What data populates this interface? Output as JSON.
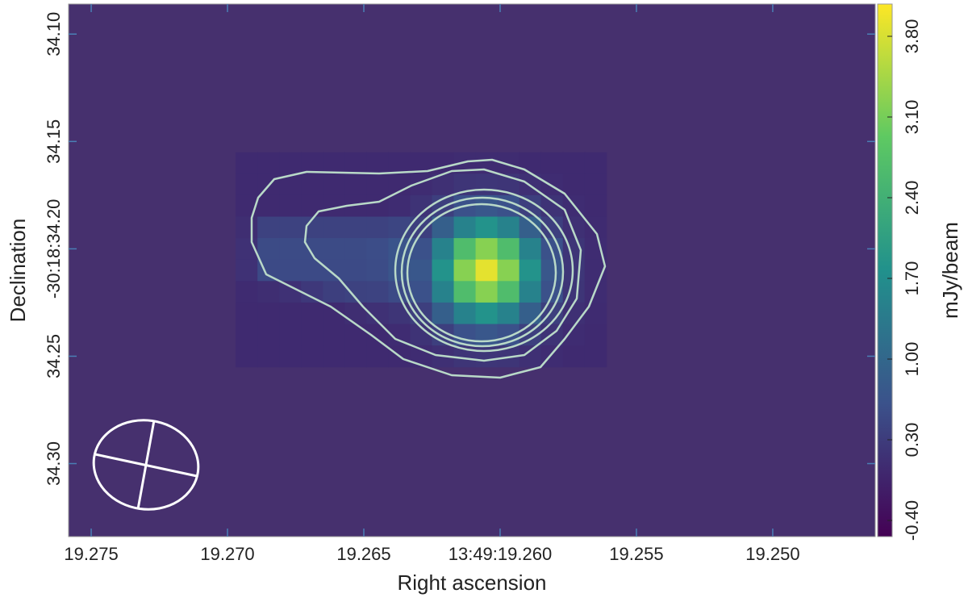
{
  "chart_data": {
    "type": "heatmap",
    "xlabel": "Right ascension",
    "ylabel": "Declination",
    "colorbar_label": "mJy/beam",
    "colormap": "viridis",
    "xlim": [
      19.27583,
      19.24624
    ],
    "ylim": [
      34.086,
      34.334
    ],
    "zlim": [
      -0.54,
      4.08
    ],
    "xticks": [
      19.275,
      {
        "value": 19.27,
        "label": "19.270"
      },
      19.265,
      {
        "value": 19.26,
        "label": "13:49:19.260"
      },
      19.255,
      {
        "value": 19.25,
        "label": "19.250"
      }
    ],
    "yticks": [
      {
        "value": 34.1,
        "label": "34.10"
      },
      34.15,
      {
        "value": 34.2,
        "label": "-30:18:34.20"
      },
      34.25,
      {
        "value": 34.3,
        "label": "34.30"
      }
    ],
    "zticks": [
      {
        "value": -0.4,
        "label": "-0.40"
      },
      {
        "value": 0.3,
        "label": "0.30"
      },
      {
        "value": 1,
        "label": "1.00"
      },
      {
        "value": 1.7,
        "label": "1.70"
      },
      {
        "value": 2.4,
        "label": "2.40"
      },
      {
        "value": 3.1,
        "label": "3.10"
      },
      {
        "value": 3.8,
        "label": "3.80"
      }
    ],
    "x": [
      19.2693,
      19.2685,
      19.2677,
      19.2669,
      19.2661,
      19.2653,
      19.2645,
      19.2637,
      19.2629,
      19.2621,
      19.2613,
      19.2605,
      19.2597,
      19.2589,
      19.2581,
      19.2573,
      19.2565
    ],
    "y": [
      34.16,
      34.17,
      34.18,
      34.19,
      34.2,
      34.21,
      34.22,
      34.23,
      34.24,
      34.25
    ],
    "z": [
      [
        0.05,
        0.05,
        0.05,
        0.05,
        0.05,
        0.05,
        0.05,
        0.05,
        0.05,
        0.05,
        0.07,
        0.07,
        0.07,
        0.05,
        0.05,
        0.05,
        0.05
      ],
      [
        0.05,
        0.05,
        0.05,
        0.05,
        0.05,
        0.05,
        0.05,
        0.05,
        0.08,
        0.13,
        0.2,
        0.22,
        0.2,
        0.13,
        0.08,
        0.05,
        0.05
      ],
      [
        0.05,
        0.05,
        0.05,
        0.05,
        0.05,
        0.05,
        0.05,
        0.08,
        0.17,
        0.35,
        0.6,
        0.71,
        0.6,
        0.35,
        0.17,
        0.08,
        0.05
      ],
      [
        0.1,
        0.38,
        0.38,
        0.38,
        0.38,
        0.38,
        0.39,
        0.43,
        0.35,
        0.86,
        1.5,
        1.81,
        1.5,
        0.86,
        0.35,
        0.13,
        0.06
      ],
      [
        0.15,
        0.52,
        0.52,
        0.52,
        0.52,
        0.52,
        0.55,
        0.65,
        0.6,
        1.5,
        2.66,
        3.22,
        2.66,
        1.5,
        0.6,
        0.2,
        0.08
      ],
      [
        0.15,
        0.5,
        0.5,
        0.5,
        0.5,
        0.5,
        0.53,
        0.67,
        0.71,
        1.81,
        3.22,
        3.9,
        3.22,
        1.81,
        0.71,
        0.22,
        0.08
      ],
      [
        0.06,
        0.1,
        0.15,
        0.25,
        0.35,
        0.38,
        0.4,
        0.5,
        0.6,
        1.5,
        2.66,
        3.22,
        2.66,
        1.5,
        0.6,
        0.2,
        0.08
      ],
      [
        0.05,
        0.05,
        0.05,
        0.05,
        0.05,
        0.1,
        0.15,
        0.2,
        0.35,
        0.86,
        1.5,
        1.81,
        1.5,
        0.86,
        0.35,
        0.13,
        0.06
      ],
      [
        0.05,
        0.05,
        0.05,
        0.05,
        0.05,
        0.05,
        0.05,
        0.08,
        0.17,
        0.35,
        0.6,
        0.71,
        0.6,
        0.35,
        0.17,
        0.08,
        0.05
      ],
      [
        0.05,
        0.05,
        0.05,
        0.05,
        0.05,
        0.05,
        0.05,
        0.05,
        0.08,
        0.13,
        0.2,
        0.22,
        0.2,
        0.13,
        0.08,
        0.05,
        0.05
      ]
    ]
  }
}
